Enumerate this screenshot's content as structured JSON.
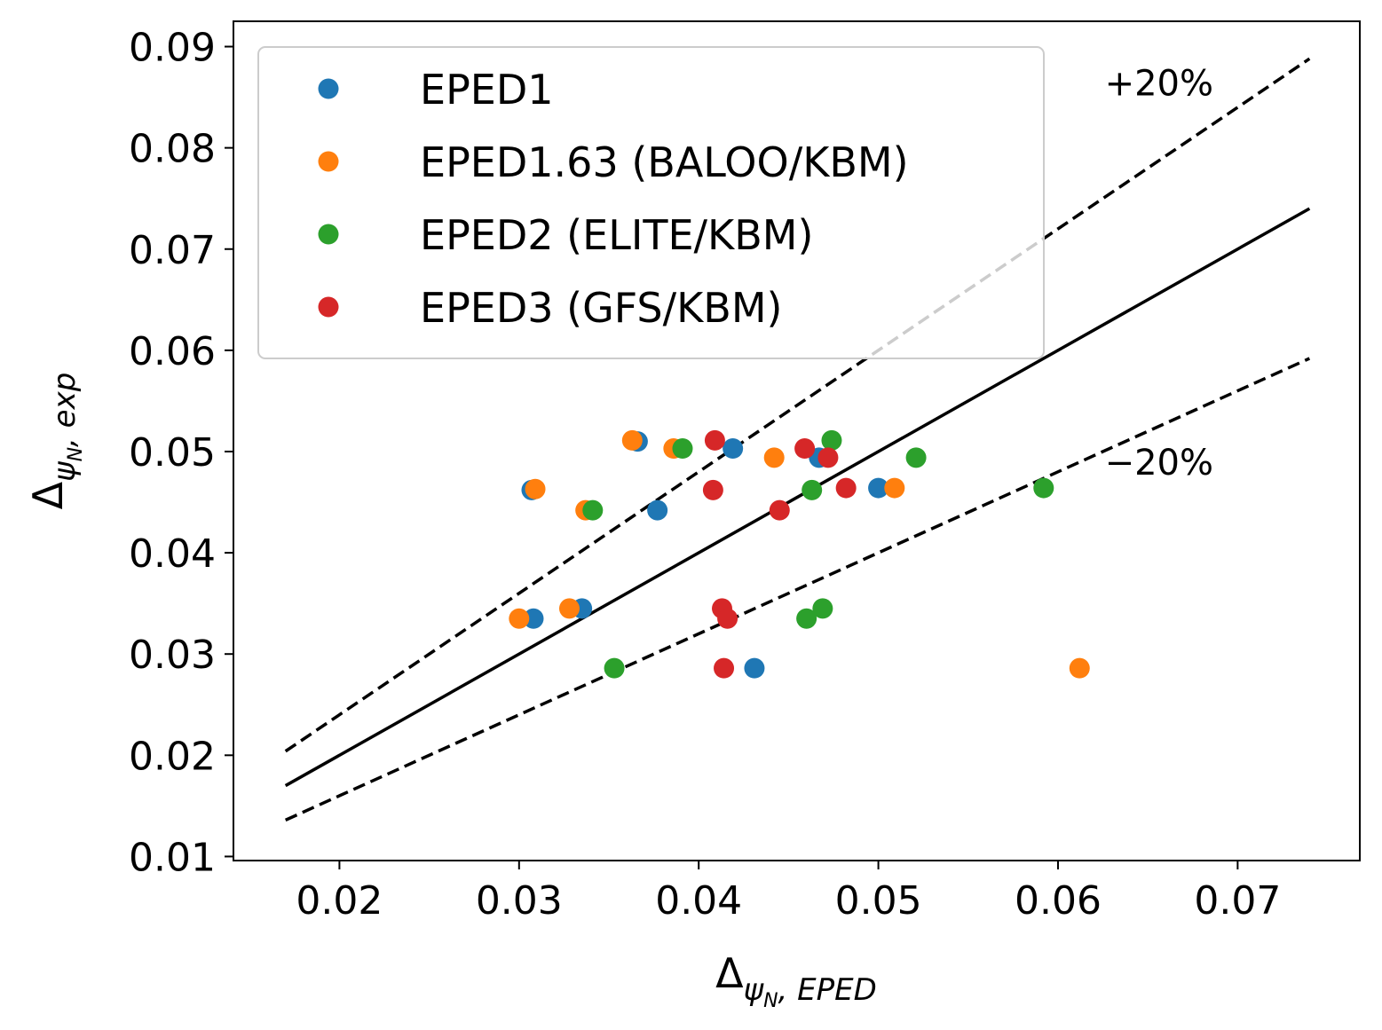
{
  "chart_data": {
    "type": "scatter",
    "title": "",
    "xlabel": {
      "main": "Δ",
      "sub": "ψ",
      "subsub": "N",
      "rest": ", EPED"
    },
    "ylabel": {
      "main": "Δ",
      "sub": "ψ",
      "subsub": "N",
      "rest": ", exp"
    },
    "xlim": [
      0.0141,
      0.0768
    ],
    "ylim": [
      0.0096,
      0.0925
    ],
    "xticks": [
      0.02,
      0.03,
      0.04,
      0.05,
      0.06,
      0.07
    ],
    "xtick_labels": [
      "0.02",
      "0.03",
      "0.04",
      "0.05",
      "0.06",
      "0.07"
    ],
    "yticks": [
      0.01,
      0.02,
      0.03,
      0.04,
      0.05,
      0.06,
      0.07,
      0.08,
      0.09
    ],
    "ytick_labels": [
      "0.01",
      "0.02",
      "0.03",
      "0.04",
      "0.05",
      "0.06",
      "0.07",
      "0.08",
      "0.09"
    ],
    "grid": false,
    "legend_position": "top-left",
    "reference_lines": [
      {
        "name": "identity",
        "style": "solid",
        "slope": 1.0,
        "x_range": [
          0.017,
          0.074
        ]
      },
      {
        "name": "+20%",
        "style": "dashed",
        "slope": 1.2,
        "x_range": [
          0.017,
          0.074
        ]
      },
      {
        "name": "-20%",
        "style": "dashed",
        "slope": 0.8,
        "x_range": [
          0.017,
          0.074
        ]
      }
    ],
    "annotations": [
      {
        "text": "+20%",
        "x": 0.0626,
        "y": 0.0852
      },
      {
        "text": "−20%",
        "x": 0.0626,
        "y": 0.0477
      }
    ],
    "series": [
      {
        "name": "EPED1",
        "color": "#1f77b4",
        "x": [
          0.0307,
          0.0366,
          0.0377,
          0.0419,
          0.0467,
          0.05,
          0.0308,
          0.0335,
          0.0431
        ],
        "y": [
          0.0462,
          0.051,
          0.0442,
          0.0503,
          0.0494,
          0.0464,
          0.0335,
          0.0345,
          0.0286
        ]
      },
      {
        "name": "EPED1.63 (BALOO/KBM)",
        "color": "#ff7f0e",
        "x": [
          0.0309,
          0.0363,
          0.0337,
          0.0386,
          0.0442,
          0.0509,
          0.03,
          0.0328,
          0.0612
        ],
        "y": [
          0.0463,
          0.0511,
          0.0442,
          0.0503,
          0.0494,
          0.0464,
          0.0335,
          0.0345,
          0.0286
        ]
      },
      {
        "name": "EPED2 (ELITE/KBM)",
        "color": "#2ca02c",
        "x": [
          0.0341,
          0.0391,
          0.0474,
          0.0463,
          0.0521,
          0.0592,
          0.0353,
          0.046,
          0.0469
        ],
        "y": [
          0.0442,
          0.0503,
          0.0511,
          0.0462,
          0.0494,
          0.0464,
          0.0286,
          0.0335,
          0.0345
        ]
      },
      {
        "name": "EPED3 (GFS/KBM)",
        "color": "#d62728",
        "x": [
          0.0409,
          0.0408,
          0.0459,
          0.0472,
          0.0445,
          0.0482,
          0.0413,
          0.0416,
          0.0414
        ],
        "y": [
          0.0511,
          0.0462,
          0.0503,
          0.0494,
          0.0442,
          0.0464,
          0.0345,
          0.0335,
          0.0286
        ]
      }
    ]
  }
}
